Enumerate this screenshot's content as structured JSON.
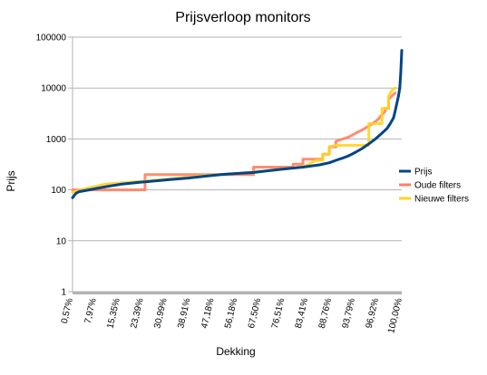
{
  "chart_data": {
    "type": "line",
    "title": "Prijsverloop monitors",
    "xlabel": "Dekking",
    "ylabel": "Prijs",
    "y_scale": "log",
    "ylim": [
      1,
      100000
    ],
    "y_ticks": [
      "1",
      "10",
      "100",
      "1000",
      "10000",
      "100000"
    ],
    "xlim": [
      0,
      100
    ],
    "x_tick_labels": [
      "0,57%",
      "7,97%",
      "15,35%",
      "23,39%",
      "30,99%",
      "38,91%",
      "47,18%",
      "56,18%",
      "67,50%",
      "76,51%",
      "83,41%",
      "88,76%",
      "93,79%",
      "96,92%",
      "100,00%"
    ],
    "grid": true,
    "legend_position": "right",
    "series": [
      {
        "name": "Prijs",
        "color": "#004586",
        "points": [
          [
            0,
            70
          ],
          [
            1,
            85
          ],
          [
            2,
            92
          ],
          [
            5,
            100
          ],
          [
            10,
            115
          ],
          [
            15,
            130
          ],
          [
            20,
            140
          ],
          [
            25,
            150
          ],
          [
            30,
            160
          ],
          [
            35,
            170
          ],
          [
            40,
            185
          ],
          [
            45,
            200
          ],
          [
            50,
            210
          ],
          [
            55,
            220
          ],
          [
            60,
            240
          ],
          [
            65,
            260
          ],
          [
            70,
            280
          ],
          [
            75,
            310
          ],
          [
            78,
            340
          ],
          [
            80,
            380
          ],
          [
            82,
            420
          ],
          [
            84,
            470
          ],
          [
            86,
            550
          ],
          [
            88,
            650
          ],
          [
            90,
            800
          ],
          [
            92,
            1000
          ],
          [
            94,
            1300
          ],
          [
            95.5,
            1600
          ],
          [
            96.5,
            2000
          ],
          [
            97.5,
            2600
          ],
          [
            98,
            3500
          ],
          [
            98.5,
            5000
          ],
          [
            99,
            7000
          ],
          [
            99.4,
            10000
          ],
          [
            99.7,
            20000
          ],
          [
            100,
            55000
          ]
        ]
      },
      {
        "name": "Oude filters",
        "color": "#ff7f62",
        "points": [
          [
            0,
            100
          ],
          [
            22,
            100
          ],
          [
            22,
            200
          ],
          [
            55,
            200
          ],
          [
            55,
            280
          ],
          [
            67,
            280
          ],
          [
            67,
            320
          ],
          [
            70,
            320
          ],
          [
            70,
            400
          ],
          [
            76,
            400
          ],
          [
            76,
            500
          ],
          [
            78,
            500
          ],
          [
            78,
            700
          ],
          [
            80,
            700
          ],
          [
            80,
            900
          ],
          [
            84,
            1100
          ],
          [
            86,
            1300
          ],
          [
            88,
            1500
          ],
          [
            90,
            1800
          ],
          [
            92,
            2200
          ],
          [
            93,
            2500
          ],
          [
            94,
            3000
          ],
          [
            95,
            3500
          ],
          [
            95,
            4000
          ],
          [
            96,
            4000
          ],
          [
            96,
            6000
          ],
          [
            97,
            7000
          ],
          [
            98,
            8000
          ]
        ]
      },
      {
        "name": "Nieuwe filters",
        "color": "#ffd320",
        "points": [
          [
            0,
            90
          ],
          [
            5,
            110
          ],
          [
            10,
            130
          ],
          [
            20,
            145
          ],
          [
            30,
            165
          ],
          [
            40,
            190
          ],
          [
            50,
            210
          ],
          [
            60,
            240
          ],
          [
            67,
            270
          ],
          [
            71,
            300
          ],
          [
            74,
            380
          ],
          [
            76,
            380
          ],
          [
            76,
            500
          ],
          [
            78,
            500
          ],
          [
            78,
            700
          ],
          [
            80,
            750
          ],
          [
            90,
            750
          ],
          [
            90,
            2000
          ],
          [
            94,
            2000
          ],
          [
            94,
            4000
          ],
          [
            96,
            4000
          ],
          [
            96,
            7000
          ],
          [
            97,
            9000
          ],
          [
            98,
            10000
          ]
        ]
      }
    ]
  }
}
